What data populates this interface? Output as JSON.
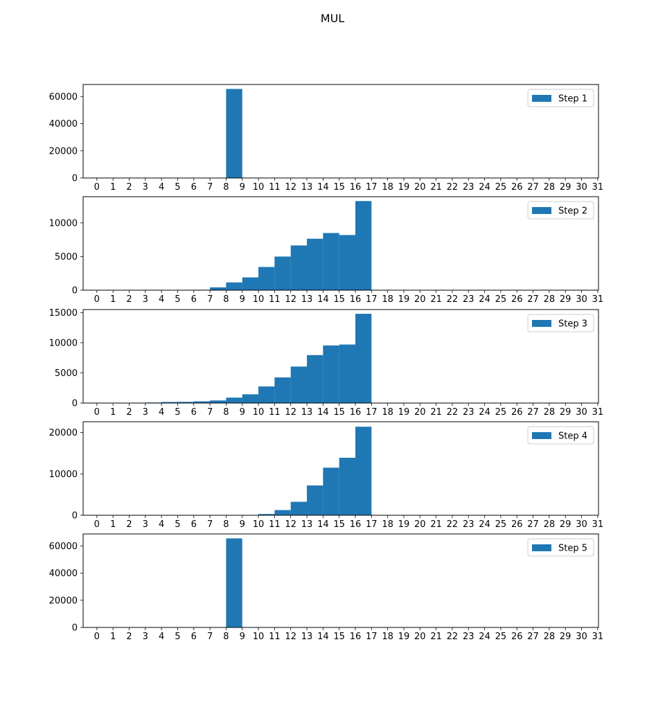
{
  "title": "MUL",
  "colors": {
    "bar": "#1f77b4",
    "axis": "#000000",
    "legend_border": "#cccccc"
  },
  "chart_data": [
    {
      "type": "bar",
      "legend": "Step 1",
      "legend_position": "top-right",
      "xlabel": "",
      "ylabel": "",
      "bin_edges": [
        0,
        31
      ],
      "xticks": [
        0,
        1,
        2,
        3,
        4,
        5,
        6,
        7,
        8,
        9,
        10,
        11,
        12,
        13,
        14,
        15,
        16,
        17,
        18,
        19,
        20,
        21,
        22,
        23,
        24,
        25,
        26,
        27,
        28,
        29,
        30,
        31
      ],
      "ylim": [
        0,
        68812
      ],
      "yticks": [
        0,
        20000,
        40000,
        60000
      ],
      "grid": false,
      "bars": [
        {
          "start": 8,
          "end": 9,
          "value": 65536
        }
      ]
    },
    {
      "type": "bar",
      "legend": "Step 2",
      "legend_position": "top-right",
      "xlabel": "",
      "ylabel": "",
      "bin_edges": [
        0,
        31
      ],
      "xticks": [
        0,
        1,
        2,
        3,
        4,
        5,
        6,
        7,
        8,
        9,
        10,
        11,
        12,
        13,
        14,
        15,
        16,
        17,
        18,
        19,
        20,
        21,
        22,
        23,
        24,
        25,
        26,
        27,
        28,
        29,
        30,
        31
      ],
      "ylim": [
        0,
        13900
      ],
      "yticks": [
        0,
        5000,
        10000
      ],
      "grid": false,
      "bars": [
        {
          "start": 6,
          "end": 7,
          "value": 60
        },
        {
          "start": 7,
          "end": 8,
          "value": 420
        },
        {
          "start": 8,
          "end": 9,
          "value": 1150
        },
        {
          "start": 9,
          "end": 10,
          "value": 1900
        },
        {
          "start": 10,
          "end": 11,
          "value": 3450
        },
        {
          "start": 11,
          "end": 12,
          "value": 5000
        },
        {
          "start": 12,
          "end": 13,
          "value": 6650
        },
        {
          "start": 13,
          "end": 14,
          "value": 7650
        },
        {
          "start": 14,
          "end": 15,
          "value": 8500
        },
        {
          "start": 15,
          "end": 16,
          "value": 8200
        },
        {
          "start": 16,
          "end": 17,
          "value": 13250
        }
      ]
    },
    {
      "type": "bar",
      "legend": "Step 3",
      "legend_position": "top-right",
      "xlabel": "",
      "ylabel": "",
      "bin_edges": [
        0,
        31
      ],
      "xticks": [
        0,
        1,
        2,
        3,
        4,
        5,
        6,
        7,
        8,
        9,
        10,
        11,
        12,
        13,
        14,
        15,
        16,
        17,
        18,
        19,
        20,
        21,
        22,
        23,
        24,
        25,
        26,
        27,
        28,
        29,
        30,
        31
      ],
      "ylim": [
        0,
        15500
      ],
      "yticks": [
        0,
        5000,
        10000,
        15000
      ],
      "grid": false,
      "bars": [
        {
          "start": 2,
          "end": 3,
          "value": 60
        },
        {
          "start": 3,
          "end": 4,
          "value": 90
        },
        {
          "start": 4,
          "end": 5,
          "value": 180
        },
        {
          "start": 5,
          "end": 6,
          "value": 200
        },
        {
          "start": 6,
          "end": 7,
          "value": 290
        },
        {
          "start": 7,
          "end": 8,
          "value": 430
        },
        {
          "start": 8,
          "end": 9,
          "value": 900
        },
        {
          "start": 9,
          "end": 10,
          "value": 1450
        },
        {
          "start": 10,
          "end": 11,
          "value": 2750
        },
        {
          "start": 11,
          "end": 12,
          "value": 4250
        },
        {
          "start": 12,
          "end": 13,
          "value": 6050
        },
        {
          "start": 13,
          "end": 14,
          "value": 7950
        },
        {
          "start": 14,
          "end": 15,
          "value": 9550
        },
        {
          "start": 15,
          "end": 16,
          "value": 9700
        },
        {
          "start": 16,
          "end": 17,
          "value": 14800
        }
      ]
    },
    {
      "type": "bar",
      "legend": "Step 4",
      "legend_position": "top-right",
      "xlabel": "",
      "ylabel": "",
      "bin_edges": [
        0,
        31
      ],
      "xticks": [
        0,
        1,
        2,
        3,
        4,
        5,
        6,
        7,
        8,
        9,
        10,
        11,
        12,
        13,
        14,
        15,
        16,
        17,
        18,
        19,
        20,
        21,
        22,
        23,
        24,
        25,
        26,
        27,
        28,
        29,
        30,
        31
      ],
      "ylim": [
        0,
        22600
      ],
      "yticks": [
        0,
        10000,
        20000
      ],
      "grid": false,
      "bars": [
        {
          "start": 10,
          "end": 11,
          "value": 300
        },
        {
          "start": 11,
          "end": 12,
          "value": 1250
        },
        {
          "start": 12,
          "end": 13,
          "value": 3250
        },
        {
          "start": 13,
          "end": 14,
          "value": 7200
        },
        {
          "start": 14,
          "end": 15,
          "value": 11500
        },
        {
          "start": 15,
          "end": 16,
          "value": 13900
        },
        {
          "start": 16,
          "end": 17,
          "value": 21400
        }
      ]
    },
    {
      "type": "bar",
      "legend": "Step 5",
      "legend_position": "top-right",
      "xlabel": "",
      "ylabel": "",
      "bin_edges": [
        0,
        31
      ],
      "xticks": [
        0,
        1,
        2,
        3,
        4,
        5,
        6,
        7,
        8,
        9,
        10,
        11,
        12,
        13,
        14,
        15,
        16,
        17,
        18,
        19,
        20,
        21,
        22,
        23,
        24,
        25,
        26,
        27,
        28,
        29,
        30,
        31
      ],
      "ylim": [
        0,
        68812
      ],
      "yticks": [
        0,
        20000,
        40000,
        60000
      ],
      "grid": false,
      "bars": [
        {
          "start": 8,
          "end": 9,
          "value": 65536
        }
      ]
    }
  ]
}
